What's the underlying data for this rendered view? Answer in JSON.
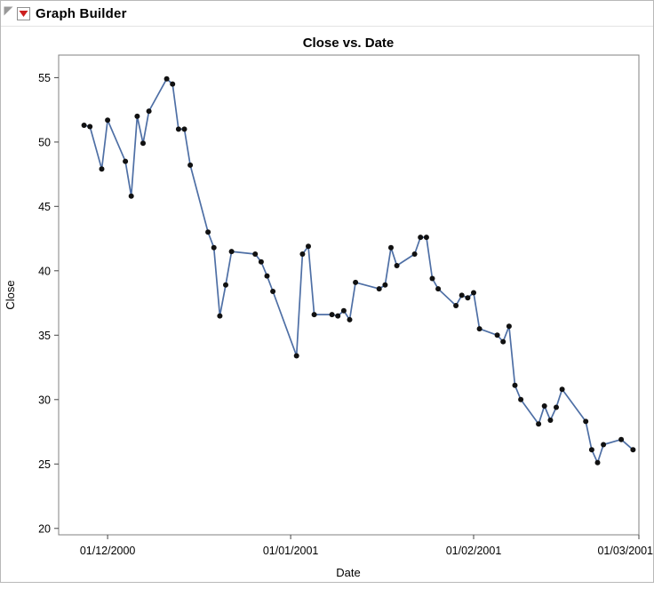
{
  "window": {
    "title": "Graph Builder",
    "hotspot_color": "#cc2020",
    "disclosure_color": "#999999"
  },
  "chart_data": {
    "type": "line",
    "title": "Close vs. Date",
    "xlabel": "Date",
    "ylabel": "Close",
    "grid": false,
    "legend": false,
    "frame_color": "#808080",
    "tick_color": "#454545",
    "x_axis": {
      "unit": "days from 01/12/2000 (dd/mm/yyyy)",
      "min": -8.3,
      "max": 90,
      "ticks": [
        {
          "day": 0,
          "label": "01/12/2000"
        },
        {
          "day": 31,
          "label": "01/01/2001"
        },
        {
          "day": 62,
          "label": "01/02/2001"
        },
        {
          "day": 90,
          "label": "01/03/2001"
        }
      ]
    },
    "y_axis": {
      "min": 19.5,
      "max": 56.75,
      "ticks": [
        20,
        25,
        30,
        35,
        40,
        45,
        50,
        55
      ]
    },
    "series": [
      {
        "name": "Close",
        "line_color": "#4e6fa5",
        "marker_color": "#111111",
        "points": [
          [
            -4,
            51.3
          ],
          [
            -3,
            51.2
          ],
          [
            -1,
            47.9
          ],
          [
            0,
            51.7
          ],
          [
            3,
            48.5
          ],
          [
            4,
            45.8
          ],
          [
            5,
            52.0
          ],
          [
            6,
            49.9
          ],
          [
            7,
            52.4
          ],
          [
            10,
            54.9
          ],
          [
            11,
            54.5
          ],
          [
            12,
            51.0
          ],
          [
            13,
            51.0
          ],
          [
            14,
            48.2
          ],
          [
            17,
            43.0
          ],
          [
            18,
            41.8
          ],
          [
            19,
            36.5
          ],
          [
            20,
            38.9
          ],
          [
            21,
            41.5
          ],
          [
            25,
            41.3
          ],
          [
            26,
            40.7
          ],
          [
            27,
            39.6
          ],
          [
            28,
            38.4
          ],
          [
            32,
            33.4
          ],
          [
            33,
            41.3
          ],
          [
            34,
            41.9
          ],
          [
            35,
            36.6
          ],
          [
            38,
            36.6
          ],
          [
            39,
            36.5
          ],
          [
            40,
            36.9
          ],
          [
            41,
            36.2
          ],
          [
            42,
            39.1
          ],
          [
            46,
            38.6
          ],
          [
            47,
            38.9
          ],
          [
            48,
            41.8
          ],
          [
            49,
            40.4
          ],
          [
            52,
            41.3
          ],
          [
            53,
            42.6
          ],
          [
            54,
            42.6
          ],
          [
            55,
            39.4
          ],
          [
            56,
            38.6
          ],
          [
            59,
            37.3
          ],
          [
            60,
            38.1
          ],
          [
            61,
            37.9
          ],
          [
            62,
            38.3
          ],
          [
            63,
            35.5
          ],
          [
            66,
            35.0
          ],
          [
            67,
            34.5
          ],
          [
            68,
            35.7
          ],
          [
            69,
            31.1
          ],
          [
            70,
            30.0
          ],
          [
            73,
            28.1
          ],
          [
            74,
            29.5
          ],
          [
            75,
            28.4
          ],
          [
            76,
            29.4
          ],
          [
            77,
            30.8
          ],
          [
            81,
            28.3
          ],
          [
            82,
            26.1
          ],
          [
            83,
            25.1
          ],
          [
            84,
            26.5
          ],
          [
            87,
            26.9
          ],
          [
            89,
            26.1
          ]
        ]
      }
    ]
  }
}
